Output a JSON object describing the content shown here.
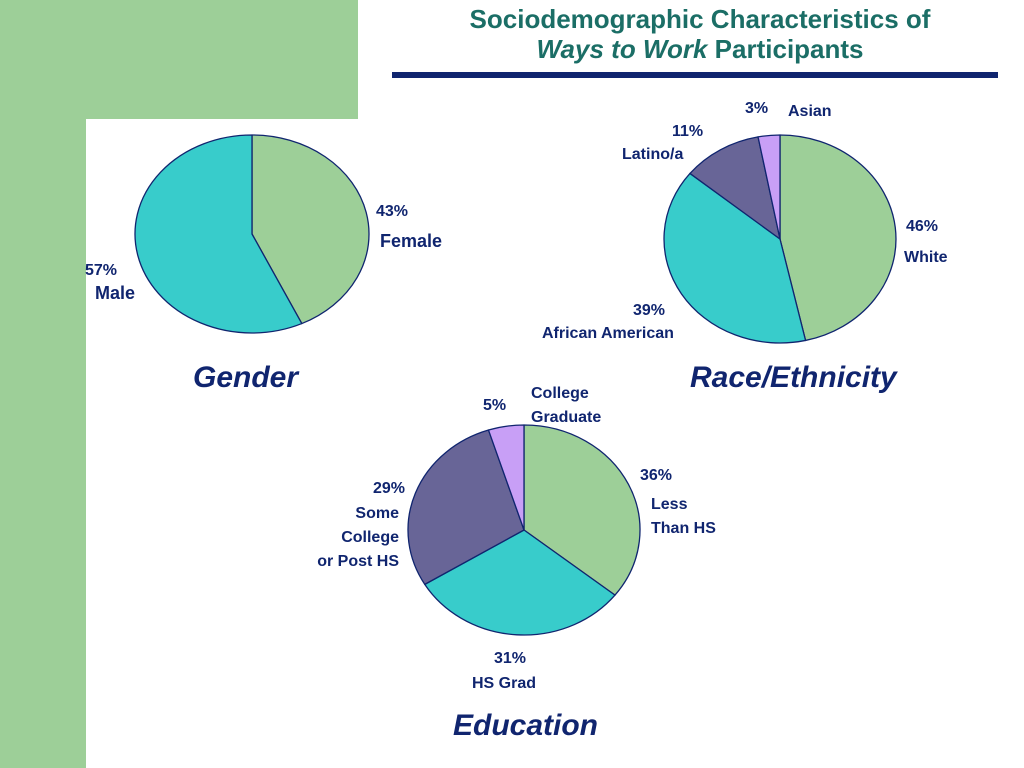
{
  "header": {
    "title_line1": "Sociodemographic Characteristics of",
    "title_line2_italic": "Ways to Work",
    "title_line2_rest": " Participants"
  },
  "colors": {
    "green": "#9dcf98",
    "teal": "#38cccb",
    "slate": "#686597",
    "lavender": "#c89ff6",
    "text": "#10256f",
    "title": "#1b6e66"
  },
  "chart_data": [
    {
      "type": "pie",
      "title": "Gender",
      "slices": [
        {
          "label": "Female",
          "value": 43,
          "value_text": "43%",
          "color": "#9dcf98"
        },
        {
          "label": "Male",
          "value": 57,
          "value_text": "57%",
          "color": "#38cccb"
        }
      ]
    },
    {
      "type": "pie",
      "title": "Race/Ethnicity",
      "slices": [
        {
          "label": "White",
          "value": 46,
          "value_text": "46%",
          "color": "#9dcf98"
        },
        {
          "label": "African American",
          "value": 39,
          "value_text": "39%",
          "color": "#38cccb"
        },
        {
          "label": "Latino/a",
          "value": 11,
          "value_text": "11%",
          "color": "#686597"
        },
        {
          "label": "Asian",
          "value": 3,
          "value_text": "3%",
          "color": "#c89ff6"
        }
      ]
    },
    {
      "type": "pie",
      "title": "Education",
      "slices": [
        {
          "label_lines": [
            "Less",
            "Than HS"
          ],
          "value": 36,
          "value_text": "36%",
          "color": "#9dcf98"
        },
        {
          "label": "HS Grad",
          "value": 31,
          "value_text": "31%",
          "color": "#38cccb"
        },
        {
          "label_lines": [
            "Some",
            "College",
            "or Post HS"
          ],
          "value": 29,
          "value_text": "29%",
          "color": "#686597"
        },
        {
          "label_lines": [
            "College",
            "Graduate"
          ],
          "value": 5,
          "value_text": "5%",
          "color": "#c89ff6"
        }
      ]
    }
  ]
}
